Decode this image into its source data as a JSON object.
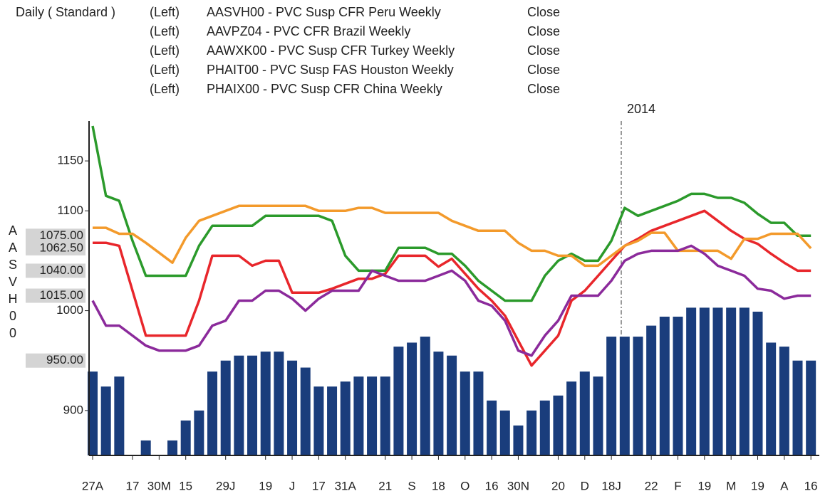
{
  "chart_data": {
    "type": "combo",
    "title": "Daily ( Standard )",
    "y_label": "AASVH00",
    "annotation": "2014",
    "categories": [
      "27A",
      null,
      null,
      "17",
      null,
      "30M",
      null,
      "15",
      null,
      null,
      "29J",
      null,
      null,
      "19",
      null,
      "J",
      null,
      "17",
      null,
      "31A",
      null,
      null,
      "21",
      null,
      "S",
      null,
      "18",
      null,
      "O",
      null,
      "16",
      null,
      "30N",
      null,
      null,
      "20",
      null,
      "D",
      null,
      "18J",
      null,
      null,
      "22",
      null,
      "F",
      null,
      "19",
      null,
      "M",
      null,
      "19",
      null,
      "A",
      null,
      "16"
    ],
    "ylim": [
      855,
      1190
    ],
    "yticks": [
      900,
      1000,
      1100,
      1150
    ],
    "series": [
      {
        "side": "(Left)",
        "name": "AASVH00 - PVC Susp CFR Peru Weekly",
        "field": "Close",
        "mark": "line",
        "color": "#e8262b",
        "last_label": "1040.00",
        "values": [
          1068,
          1068,
          1065,
          1020,
          975,
          975,
          975,
          975,
          1010,
          1055,
          1055,
          1055,
          1045,
          1050,
          1050,
          1018,
          1018,
          1018,
          1022,
          1027,
          1032,
          1032,
          1037,
          1055,
          1055,
          1055,
          1044,
          1052,
          1037,
          1022,
          1010,
          995,
          970,
          945,
          960,
          975,
          1010,
          1020,
          1035,
          1050,
          1065,
          1072,
          1080,
          1085,
          1090,
          1095,
          1100,
          1090,
          1080,
          1072,
          1067,
          1057,
          1048,
          1040,
          1040
        ]
      },
      {
        "side": "(Left)",
        "name": "AAVPZ04 - PVC CFR Brazil Weekly",
        "field": "Close",
        "mark": "line",
        "color": "#2b9a2b",
        "last_label": "1075.00",
        "values": [
          1185,
          1115,
          1110,
          1070,
          1035,
          1035,
          1035,
          1035,
          1065,
          1085,
          1085,
          1085,
          1085,
          1095,
          1095,
          1095,
          1095,
          1095,
          1090,
          1055,
          1040,
          1040,
          1040,
          1063,
          1063,
          1063,
          1057,
          1057,
          1045,
          1030,
          1020,
          1010,
          1010,
          1010,
          1035,
          1050,
          1057,
          1050,
          1050,
          1070,
          1103,
          1095,
          1100,
          1105,
          1110,
          1117,
          1117,
          1113,
          1113,
          1108,
          1097,
          1088,
          1088,
          1075,
          1075
        ]
      },
      {
        "side": "(Left)",
        "name": "AAWXK00 - PVC Susp CFR Turkey Weekly",
        "field": "Close",
        "mark": "line",
        "color": "#f39a2b",
        "last_label": "1062.50",
        "values": [
          1083,
          1083,
          1077,
          1077,
          1068,
          1058,
          1048,
          1073,
          1090,
          1095,
          1100,
          1105,
          1105,
          1105,
          1105,
          1105,
          1105,
          1100,
          1100,
          1100,
          1103,
          1103,
          1098,
          1098,
          1098,
          1098,
          1098,
          1090,
          1085,
          1080,
          1080,
          1080,
          1068,
          1060,
          1060,
          1055,
          1055,
          1045,
          1045,
          1055,
          1065,
          1070,
          1078,
          1078,
          1060,
          1060,
          1060,
          1060,
          1052,
          1072,
          1072,
          1077,
          1077,
          1077,
          1062.5
        ]
      },
      {
        "side": "(Left)",
        "name": "PHAIT00 - PVC Susp FAS Houston Weekly",
        "field": "Close",
        "mark": "bar",
        "color": "#1a3d7c",
        "label_color": "#3d6fb0",
        "last_label": "950.00",
        "values": [
          939,
          924,
          934,
          null,
          870,
          null,
          870,
          890,
          900,
          939,
          950,
          955,
          955,
          959,
          959,
          950,
          943,
          924,
          924,
          929,
          934,
          934,
          934,
          964,
          968,
          974,
          959,
          955,
          939,
          939,
          910,
          900,
          885,
          900,
          910,
          915,
          929,
          939,
          934,
          974,
          974,
          974,
          985,
          994,
          994,
          1003,
          1003,
          1003,
          1003,
          1003,
          999,
          968,
          964,
          950,
          950
        ]
      },
      {
        "side": "(Left)",
        "name": "PHAIX00 - PVC Susp CFR China Weekly",
        "field": "Close",
        "mark": "line",
        "color": "#8b2a9b",
        "last_label": "1015.00",
        "values": [
          1010,
          985,
          985,
          975,
          965,
          960,
          960,
          960,
          965,
          985,
          990,
          1010,
          1010,
          1020,
          1020,
          1012,
          1000,
          1012,
          1020,
          1020,
          1020,
          1040,
          1035,
          1030,
          1030,
          1030,
          1035,
          1040,
          1030,
          1010,
          1005,
          990,
          960,
          955,
          975,
          990,
          1015,
          1015,
          1015,
          1030,
          1050,
          1057,
          1060,
          1060,
          1060,
          1065,
          1057,
          1045,
          1040,
          1035,
          1022,
          1020,
          1012,
          1015,
          1015
        ]
      }
    ]
  }
}
